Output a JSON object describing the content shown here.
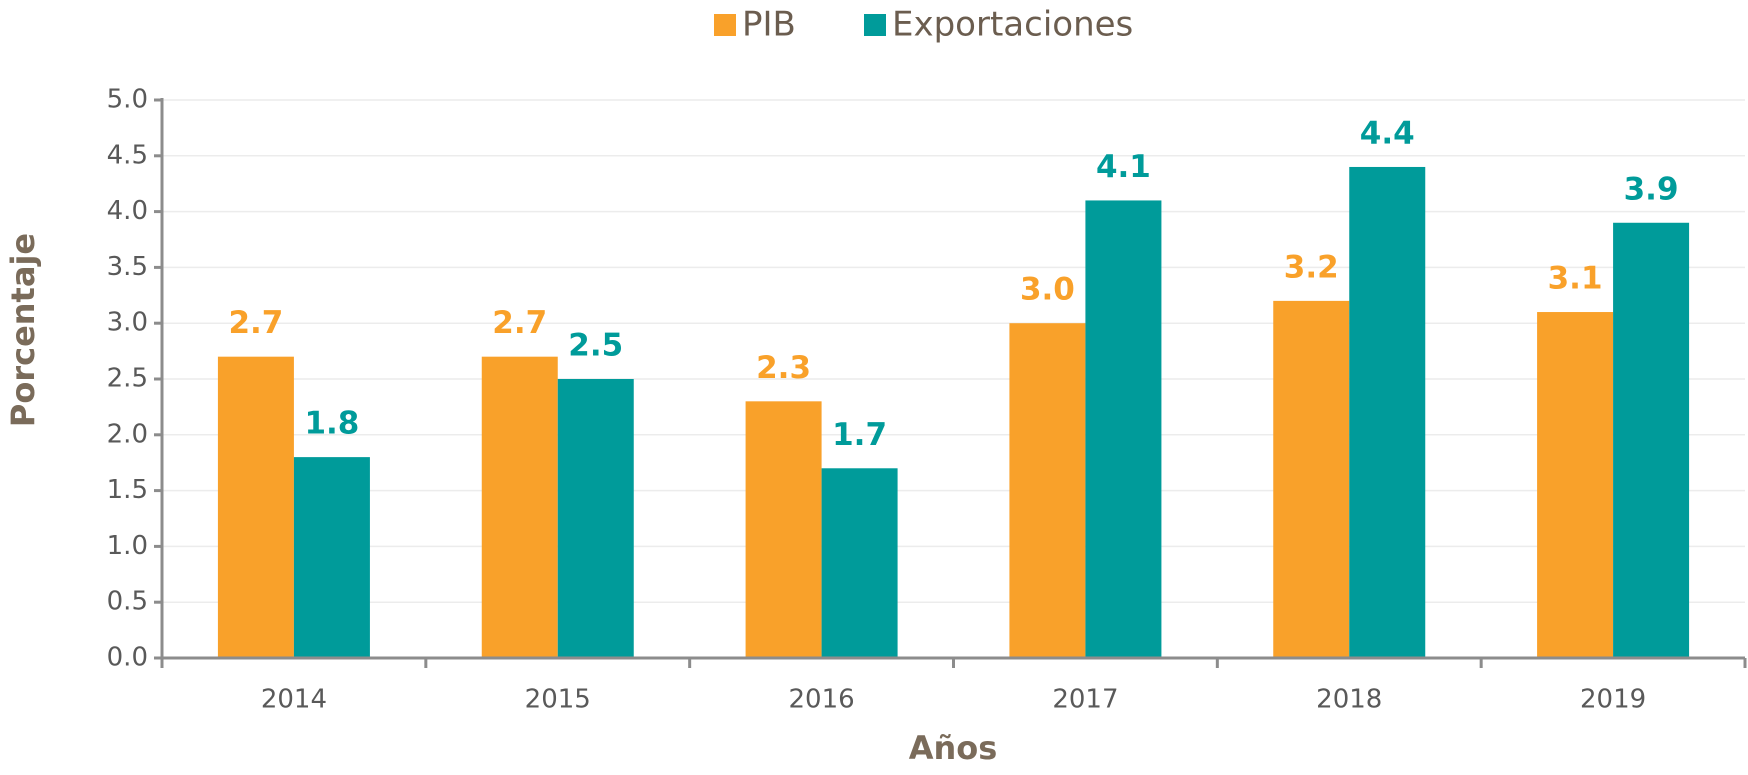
{
  "chart_data": {
    "type": "bar",
    "categories": [
      "2014",
      "2015",
      "2016",
      "2017",
      "2018",
      "2019"
    ],
    "series": [
      {
        "name": "PIB",
        "color": "#F9A12A",
        "values": [
          2.7,
          2.7,
          2.3,
          3,
          3.2,
          3.1
        ],
        "value_labels": [
          "2.7",
          "2.7",
          "2.3",
          "3.0",
          "3.2",
          "3.1"
        ]
      },
      {
        "name": "Exportaciones",
        "color": "#009B9A",
        "values": [
          1.8,
          2.5,
          1.7,
          4.1,
          4.4,
          3.9
        ],
        "value_labels": [
          "1.8",
          "2.5",
          "1.7",
          "4.1",
          "4.4",
          "3.9"
        ]
      }
    ],
    "x_label": "Años",
    "y_label": "Porcentaje",
    "ylim": [
      0,
      5
    ],
    "yticks": [
      {
        "value": 0,
        "label": "0.0"
      },
      0.5,
      {
        "value": 1,
        "label": "1.0"
      },
      1.5,
      {
        "value": 2,
        "label": "2.0"
      },
      2.5,
      {
        "value": 3,
        "label": "3.0"
      },
      3.5,
      {
        "value": 4,
        "label": "4.0"
      },
      4.5,
      {
        "value": 5,
        "label": "5.0"
      }
    ],
    "grid": true,
    "legend": "top"
  }
}
